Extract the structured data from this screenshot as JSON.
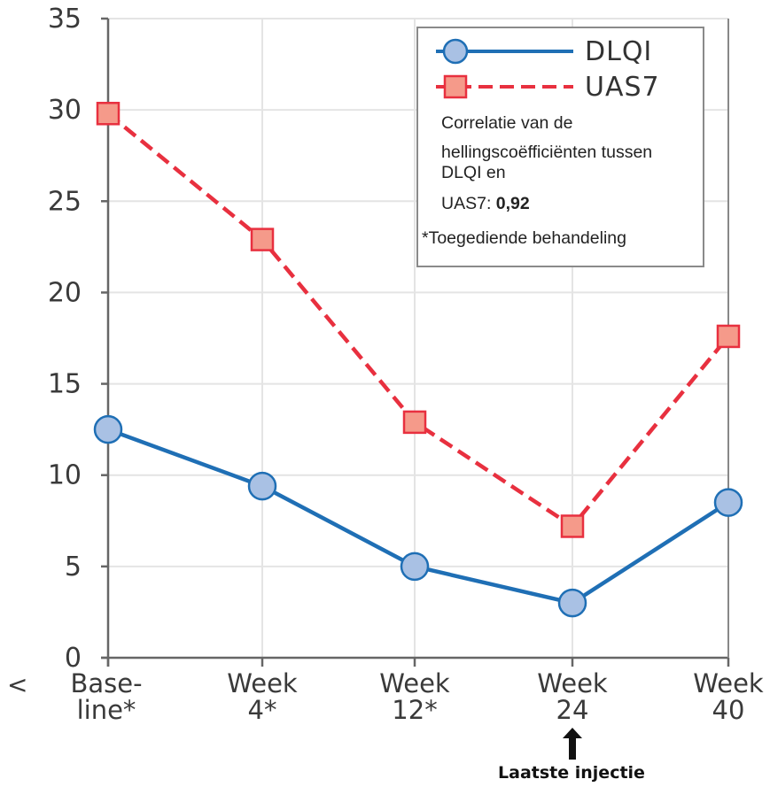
{
  "chart_data": {
    "type": "line",
    "categories": [
      "Base-\nline*",
      "Week\n4*",
      "Week\n12*",
      "Week\n24",
      "Week\n40"
    ],
    "series": [
      {
        "name": "DLQI",
        "values": [
          12.5,
          9.4,
          5.0,
          3.0,
          8.5
        ],
        "color": "#1f6fb5",
        "marker": "circle",
        "dash": "solid"
      },
      {
        "name": "UAS7",
        "values": [
          29.8,
          22.9,
          12.9,
          7.2,
          17.6
        ],
        "color": "#e8303f",
        "marker": "square",
        "dash": "dashed"
      }
    ],
    "yticks": [
      "0",
      "5",
      "10",
      "15",
      "20",
      "25",
      "30",
      "35"
    ],
    "ylim": [
      0,
      35
    ],
    "grid": true,
    "legend_position": "top-right"
  },
  "legend": {
    "correlation_lines": [
      "Correlatie van de",
      "hellingscoëfficiënten tussen",
      "DLQI en"
    ],
    "correlation_value_prefix": "UAS7: ",
    "correlation_value": "0,92",
    "footnote": "*Toegediende behandeling"
  },
  "annotation": {
    "last_injection": "Laatste injectie",
    "left_marker": "<"
  },
  "colors": {
    "dlqi_line": "#1f6fb5",
    "dlqi_marker_fill": "#a9c1e4",
    "uas7_line": "#e8303f",
    "uas7_marker_fill": "#f59a8a"
  }
}
